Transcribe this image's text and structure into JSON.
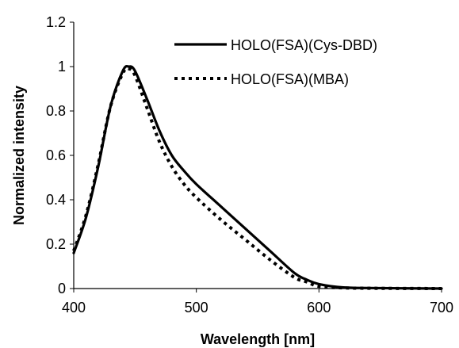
{
  "chart_data": {
    "type": "line",
    "title": "",
    "xlabel": "Wavelength [nm]",
    "ylabel": "Normalized intensity",
    "xlim": [
      400,
      700
    ],
    "ylim": [
      0,
      1.2
    ],
    "x_ticks": [
      "400",
      "500",
      "600",
      "700"
    ],
    "y_ticks": [
      "0",
      "0.2",
      "0.4",
      "0.6",
      "0.8",
      "1",
      "1.2"
    ],
    "grid": false,
    "legend_position": "top-right",
    "series": [
      {
        "name": "HOLO(FSA)(Cys-DBD)",
        "style": "solid",
        "color": "#000000",
        "x": [
          400,
          410,
          420,
          430,
          440,
          445,
          450,
          460,
          470,
          480,
          490,
          500,
          520,
          540,
          560,
          580,
          590,
          600,
          620,
          650,
          700
        ],
        "y": [
          0.16,
          0.32,
          0.55,
          0.82,
          0.98,
          1.0,
          0.98,
          0.85,
          0.71,
          0.6,
          0.53,
          0.47,
          0.37,
          0.27,
          0.17,
          0.07,
          0.04,
          0.02,
          0.005,
          0.002,
          0.0
        ]
      },
      {
        "name": "HOLO(FSA)(MBA)",
        "style": "dotted",
        "color": "#000000",
        "x": [
          400,
          410,
          420,
          430,
          440,
          445,
          450,
          460,
          470,
          480,
          490,
          500,
          520,
          540,
          560,
          580,
          590,
          600,
          620,
          650,
          700
        ],
        "y": [
          0.17,
          0.33,
          0.56,
          0.82,
          0.97,
          0.99,
          0.96,
          0.81,
          0.66,
          0.55,
          0.47,
          0.41,
          0.31,
          0.22,
          0.13,
          0.05,
          0.03,
          0.01,
          0.003,
          0.001,
          0.0
        ]
      }
    ]
  }
}
